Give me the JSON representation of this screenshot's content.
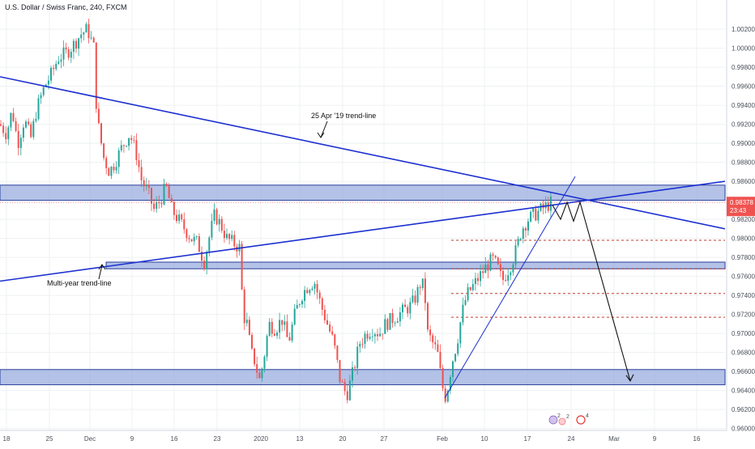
{
  "header": {
    "title": "U.S. Dollar / Swiss Franc, 240, FXCM"
  },
  "price_badge": {
    "price": "0.98378",
    "countdown": "23:43"
  },
  "event_markers": {
    "flag_count": "2",
    "second_count": "2",
    "alert_count": "4"
  },
  "colors": {
    "up_candle": "#26a69a",
    "down_candle": "#ef5350",
    "trendline": "#1b2fd0",
    "zone_fill": "#9aaede",
    "zone_border": "#2a3f9c",
    "dashed_level": "#c0392b",
    "badge": "#ef5350",
    "grid": "#eef0f3"
  },
  "chart_data": {
    "type": "candlestick",
    "title": "U.S. Dollar / Swiss Franc, 240, FXCM",
    "y_axis": {
      "side": "right",
      "range": [
        0.9598,
        1.0032
      ],
      "ticks": [
        "1.00200",
        "1.00000",
        "0.99800",
        "0.99600",
        "0.99400",
        "0.99200",
        "0.99000",
        "0.98800",
        "0.98600",
        "0.98400",
        "0.98200",
        "0.98000",
        "0.97800",
        "0.97600",
        "0.97400",
        "0.97200",
        "0.97000",
        "0.96800",
        "0.96600",
        "0.96400",
        "0.96200",
        "0.96000"
      ]
    },
    "x_axis": {
      "ticks": [
        "18",
        "25",
        "Dec",
        "9",
        "16",
        "23",
        "2020",
        "13",
        "20",
        "27",
        "Feb",
        "10",
        "17",
        "24",
        "Mar",
        "9",
        "16"
      ]
    },
    "grid": true,
    "price_path": [
      [
        0,
        0.992
      ],
      [
        8,
        0.991
      ],
      [
        15,
        0.9935
      ],
      [
        22,
        0.99
      ],
      [
        30,
        0.9925
      ],
      [
        38,
        0.9905
      ],
      [
        45,
        0.9935
      ],
      [
        55,
        0.996
      ],
      [
        63,
        0.9972
      ],
      [
        72,
        0.999
      ],
      [
        82,
        0.9995
      ],
      [
        92,
        1.0005
      ],
      [
        100,
        1.0015
      ],
      [
        108,
        1.002
      ],
      [
        116,
        1.0
      ],
      [
        118,
        0.995
      ],
      [
        122,
        0.9915
      ],
      [
        128,
        0.9885
      ],
      [
        135,
        0.987
      ],
      [
        142,
        0.988
      ],
      [
        150,
        0.9895
      ],
      [
        160,
        0.991
      ],
      [
        168,
        0.989
      ],
      [
        175,
        0.986
      ],
      [
        182,
        0.985
      ],
      [
        190,
        0.983
      ],
      [
        198,
        0.984
      ],
      [
        205,
        0.9855
      ],
      [
        212,
        0.983
      ],
      [
        220,
        0.982
      ],
      [
        228,
        0.981
      ],
      [
        236,
        0.98
      ],
      [
        244,
        0.9795
      ],
      [
        252,
        0.9775
      ],
      [
        258,
        0.98
      ],
      [
        265,
        0.9825
      ],
      [
        272,
        0.9815
      ],
      [
        280,
        0.98
      ],
      [
        288,
        0.9795
      ],
      [
        296,
        0.979
      ],
      [
        300,
        0.972
      ],
      [
        305,
        0.971
      ],
      [
        310,
        0.968
      ],
      [
        315,
        0.967
      ],
      [
        320,
        0.965
      ],
      [
        325,
        0.967
      ],
      [
        332,
        0.971
      ],
      [
        340,
        0.9705
      ],
      [
        348,
        0.9715
      ],
      [
        356,
        0.969
      ],
      [
        364,
        0.972
      ],
      [
        372,
        0.974
      ],
      [
        380,
        0.975
      ],
      [
        388,
        0.9755
      ],
      [
        396,
        0.973
      ],
      [
        404,
        0.971
      ],
      [
        412,
        0.969
      ],
      [
        420,
        0.965
      ],
      [
        428,
        0.9635
      ],
      [
        436,
        0.966
      ],
      [
        444,
        0.969
      ],
      [
        452,
        0.97
      ],
      [
        460,
        0.9705
      ],
      [
        468,
        0.97
      ],
      [
        476,
        0.971
      ],
      [
        484,
        0.9715
      ],
      [
        492,
        0.972
      ],
      [
        500,
        0.9725
      ],
      [
        508,
        0.973
      ],
      [
        514,
        0.974
      ],
      [
        520,
        0.9755
      ],
      [
        524,
        0.9745
      ],
      [
        528,
        0.97
      ],
      [
        534,
        0.969
      ],
      [
        540,
        0.968
      ],
      [
        545,
        0.965
      ],
      [
        549,
        0.9632
      ],
      [
        552,
        0.964
      ],
      [
        558,
        0.967
      ],
      [
        564,
        0.969
      ],
      [
        570,
        0.972
      ],
      [
        576,
        0.974
      ],
      [
        584,
        0.975
      ],
      [
        592,
        0.976
      ],
      [
        600,
        0.977
      ],
      [
        608,
        0.9778
      ],
      [
        614,
        0.977
      ],
      [
        620,
        0.9755
      ],
      [
        626,
        0.9765
      ],
      [
        632,
        0.9775
      ],
      [
        638,
        0.979
      ],
      [
        644,
        0.981
      ],
      [
        652,
        0.982
      ],
      [
        660,
        0.9825
      ],
      [
        668,
        0.983
      ],
      [
        676,
        0.9835
      ],
      [
        682,
        0.9838
      ]
    ],
    "annotations": [
      {
        "text": "25 Apr '19 trend-line",
        "type": "label"
      },
      {
        "text": "Multi-year trend-line",
        "type": "label"
      }
    ],
    "drawings": {
      "trendlines": [
        {
          "name": "25 Apr '19 trend-line",
          "from": [
            "x0",
            0.997
          ],
          "to": [
            "x-end",
            0.981
          ]
        },
        {
          "name": "Multi-year trend-line",
          "from": [
            "x0",
            0.9755
          ],
          "to": [
            "x-end",
            0.986
          ]
        },
        {
          "name": "Feb support line",
          "from": [
            "Feb low",
            0.9632
          ],
          "to": [
            "21 Feb",
            0.9865
          ]
        }
      ],
      "zones": [
        {
          "name": "resistance-zone",
          "low": 0.984,
          "high": 0.9856
        },
        {
          "name": "mid-support-zone",
          "low": 0.9768,
          "high": 0.9775
        },
        {
          "name": "lower-support-zone",
          "low": 0.9646,
          "high": 0.9662
        }
      ],
      "dashed_levels": [
        0.9798,
        0.9768,
        0.9742,
        0.9717
      ],
      "projection": [
        [
          0.9835
        ],
        [
          0.982
        ],
        [
          0.9838
        ],
        [
          0.9818
        ],
        [
          0.9838
        ],
        [
          0.965
        ]
      ]
    }
  }
}
